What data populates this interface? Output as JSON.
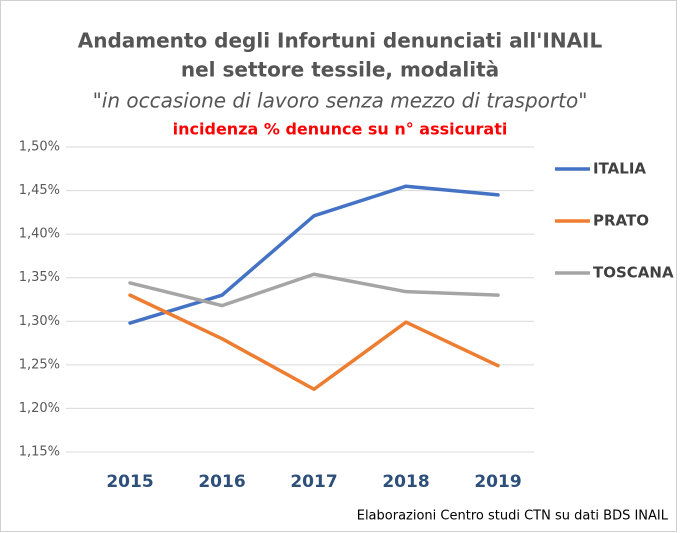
{
  "chart_data": {
    "type": "line",
    "title": [
      "Andamento degli Infortuni denunciati all'INAIL",
      "nel settore tessile, modalità"
    ],
    "subtitle": "\"in occasione di lavoro senza mezzo di trasporto\"",
    "annotation": "incidenza % denunce su n° assicurati",
    "source": "Elaborazioni Centro studi CTN su dati BDS INAIL",
    "categories": [
      "2015",
      "2016",
      "2017",
      "2018",
      "2019"
    ],
    "series": [
      {
        "name": "ITALIA",
        "color": "#4472c4",
        "values": [
          1.298,
          1.33,
          1.421,
          1.455,
          1.445
        ]
      },
      {
        "name": "PRATO",
        "color": "#ed7d31",
        "values": [
          1.33,
          1.28,
          1.222,
          1.299,
          1.249
        ]
      },
      {
        "name": "TOSCANA",
        "color": "#a5a5a5",
        "values": [
          1.344,
          1.318,
          1.354,
          1.334,
          1.33
        ]
      }
    ],
    "ylim": [
      1.15,
      1.5
    ],
    "yticks": [
      {
        "value": 1.15,
        "label": "1,15%"
      },
      {
        "value": 1.2,
        "label": "1,20%"
      },
      {
        "value": 1.25,
        "label": "1,25%"
      },
      {
        "value": 1.3,
        "label": "1,30%"
      },
      {
        "value": 1.35,
        "label": "1,35%"
      },
      {
        "value": 1.4,
        "label": "1,40%"
      },
      {
        "value": 1.45,
        "label": "1,45%"
      },
      {
        "value": 1.5,
        "label": "1,50%"
      }
    ],
    "grid": true,
    "legend": "right"
  }
}
